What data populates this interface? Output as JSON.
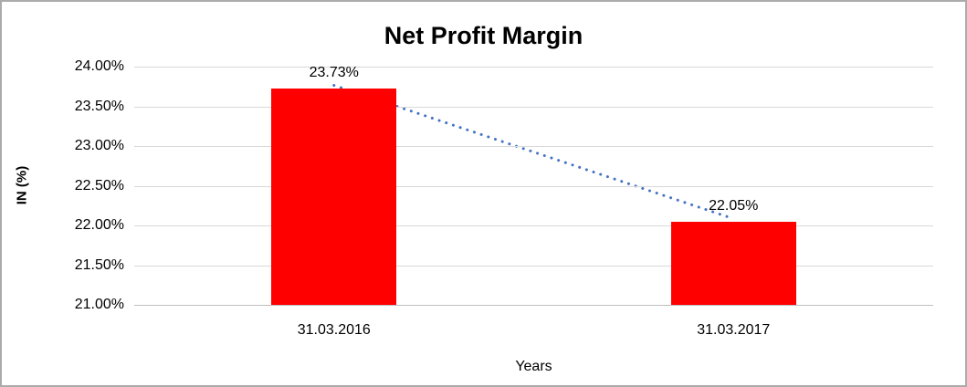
{
  "chart_data": {
    "type": "bar",
    "title": "Net Profit Margin",
    "xlabel": "Years",
    "ylabel": "IN (%)",
    "categories": [
      "31.03.2016",
      "31.03.2017"
    ],
    "series": [
      {
        "name": "Net Profit Margin",
        "values": [
          23.73,
          22.05
        ]
      }
    ],
    "data_labels": [
      "23.73%",
      "22.05%"
    ],
    "ylim": [
      21,
      24
    ],
    "ytick_step": 0.5,
    "ytick_labels": [
      "24.00%",
      "23.50%",
      "23.00%",
      "22.50%",
      "22.00%",
      "21.50%",
      "21.00%"
    ],
    "grid": true,
    "legend": "none",
    "colors": {
      "bar": "#ff0000",
      "trendline": "#4472c4",
      "gridline": "#d9d9d9",
      "axisline": "#bfbfbf",
      "text": "#000000"
    },
    "trendline": {
      "type": "linear",
      "style": "dotted"
    }
  }
}
